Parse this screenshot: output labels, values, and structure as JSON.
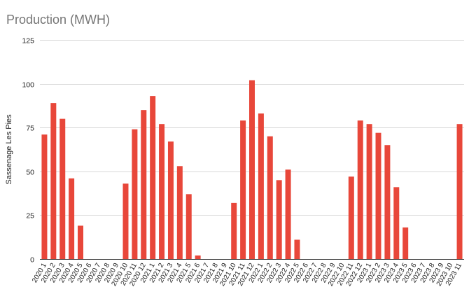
{
  "chart_data": {
    "type": "bar",
    "title": "Production (MWH)",
    "xlabel": "",
    "ylabel": "Sassenage Les Pies",
    "ylim": [
      0,
      125
    ],
    "yticks": [
      0,
      25,
      50,
      75,
      100,
      125
    ],
    "grid": true,
    "legend": "none",
    "bar_color": "#e8473a",
    "categories": [
      "2020 1",
      "2020 2",
      "2020 3",
      "2020 4",
      "2020 5",
      "2020 6",
      "2020 7",
      "2020 8",
      "2020 9",
      "2020 10",
      "2020 11",
      "2020 12",
      "2021 1",
      "2021 2",
      "2021 3",
      "2021 4",
      "2021 5",
      "2021 6",
      "2021 7",
      "2021 8",
      "2021 9",
      "2021 10",
      "2021 11",
      "2021 12",
      "2022 1",
      "2022 2",
      "2022 3",
      "2022 4",
      "2022 5",
      "2022 6",
      "2022 7",
      "2022 8",
      "2022 9",
      "2022 10",
      "2022 11",
      "2022 12",
      "2023 1",
      "2023 2",
      "2023 3",
      "2023 4",
      "2023 5",
      "2023 6",
      "2023 7",
      "2023 8",
      "2023 9",
      "2023 10",
      "2023 11"
    ],
    "values": [
      71,
      89,
      80,
      46,
      19,
      0,
      0,
      0,
      0,
      43,
      74,
      85,
      93,
      77,
      67,
      53,
      37,
      2,
      0,
      0,
      0,
      32,
      79,
      102,
      83,
      70,
      45,
      51,
      11,
      0,
      0,
      0,
      0,
      0,
      47,
      79,
      77,
      72,
      65,
      41,
      18,
      0,
      0,
      0,
      0,
      0,
      77
    ]
  }
}
